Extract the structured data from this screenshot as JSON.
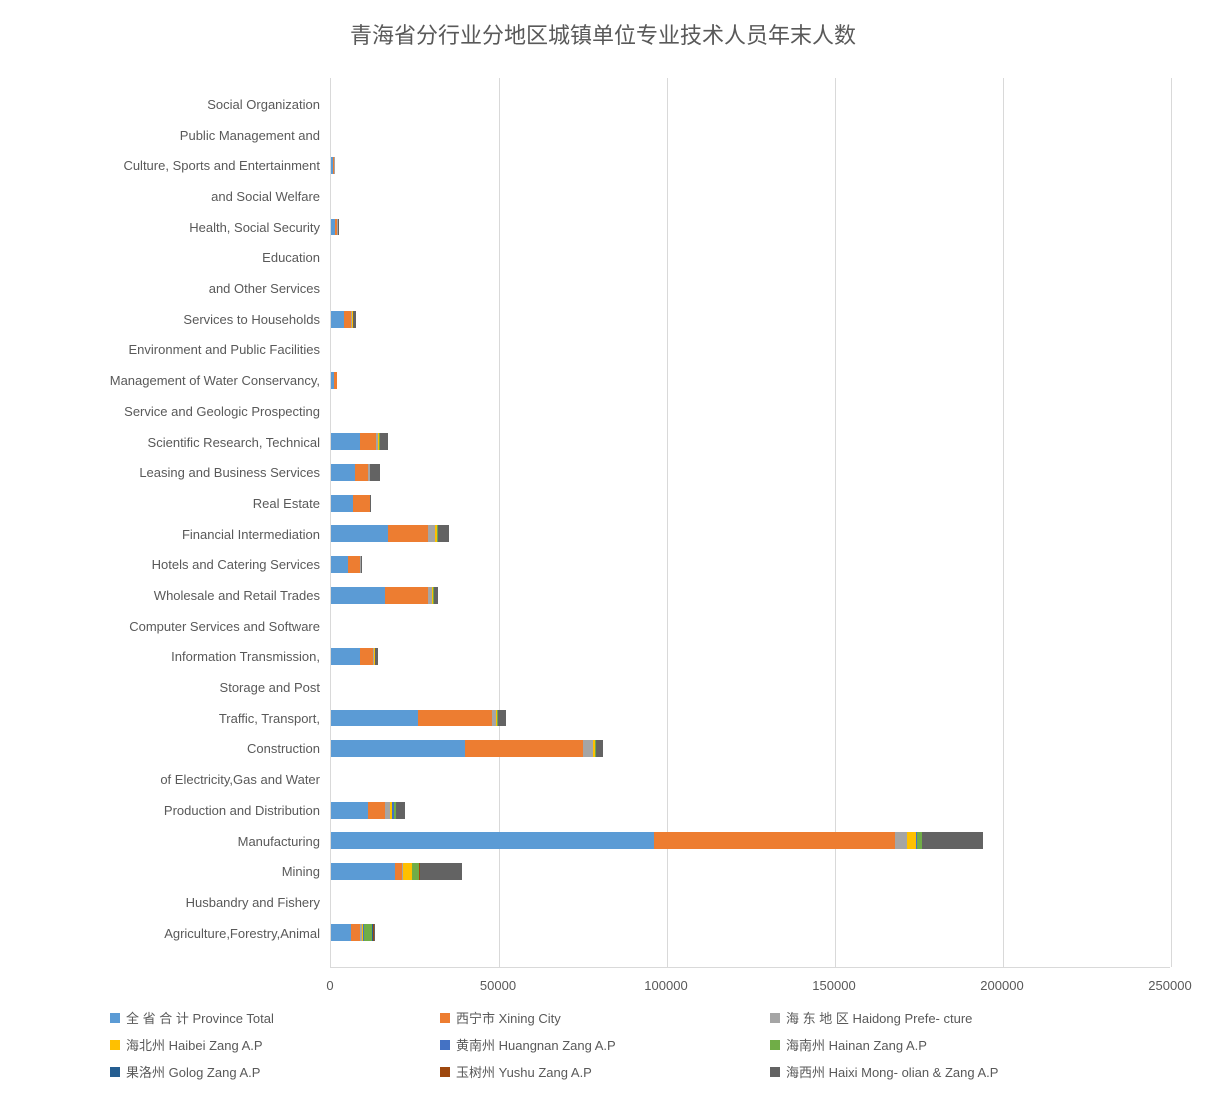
{
  "chart": {
    "type": "stacked-horizontal-bar",
    "title": "青海省分行业分地区城镇单位专业技术人员年末人数",
    "title_fontsize": 22,
    "title_color": "#595959",
    "background_color": "#ffffff",
    "grid_color": "#d9d9d9",
    "axis_label_color": "#595959",
    "axis_label_fontsize": 13,
    "category_label_fontsize": 13,
    "legend_fontsize": 13,
    "xlim": [
      0,
      250000
    ],
    "xtick_step": 50000,
    "xticks": [
      "0",
      "50000",
      "100000",
      "150000",
      "200000",
      "250000"
    ],
    "categories": [
      "Social Organization",
      "Public Management and",
      "Culture, Sports and Entertainment",
      "and Social Welfare",
      "Health, Social Security",
      "Education",
      "and Other Services",
      "Services to Households",
      "Environment and Public Facilities",
      "Management of Water Conservancy,",
      "Service and Geologic Prospecting",
      "Scientific Research, Technical",
      "Leasing and Business Services",
      "Real Estate",
      "Financial Intermediation",
      "Hotels and Catering Services",
      "Wholesale and Retail Trades",
      "Computer Services and Software",
      "Information Transmission,",
      "Storage and Post",
      "Traffic, Transport,",
      "Construction",
      "of Electricity,Gas and Water",
      "Production and Distribution",
      "Manufacturing",
      "Mining",
      "Husbandry and Fishery",
      "Agriculture,Forestry,Animal"
    ],
    "series": [
      {
        "name": "全 省 合 计 Province Total",
        "color": "#5b9bd5"
      },
      {
        "name": "西宁市 Xining City",
        "color": "#ed7d31"
      },
      {
        "name": "海 东 地 区 Haidong Prefe- cture",
        "color": "#a5a5a5"
      },
      {
        "name": "海北州 Haibei Zang A.P",
        "color": "#ffc000"
      },
      {
        "name": "黄南州 Huangnan Zang A.P",
        "color": "#4472c4"
      },
      {
        "name": "海南州 Hainan Zang A.P",
        "color": "#70ad47"
      },
      {
        "name": "果洛州 Golog Zang A.P",
        "color": "#255e91"
      },
      {
        "name": "玉树州 Yushu Zang A.P",
        "color": "#9e480e"
      },
      {
        "name": "海西州 Haixi Mong- olian & Zang A.P",
        "color": "#636363"
      }
    ],
    "values": [
      [
        0,
        0,
        0,
        0,
        0,
        0,
        0,
        0,
        0
      ],
      [
        0,
        0,
        0,
        0,
        0,
        0,
        0,
        0,
        0
      ],
      [
        600,
        300,
        200,
        0,
        0,
        0,
        0,
        0,
        0
      ],
      [
        0,
        0,
        0,
        0,
        0,
        0,
        0,
        0,
        0
      ],
      [
        1200,
        600,
        200,
        100,
        0,
        0,
        0,
        0,
        200
      ],
      [
        0,
        0,
        0,
        0,
        0,
        0,
        0,
        0,
        0
      ],
      [
        0,
        0,
        0,
        0,
        0,
        0,
        0,
        0,
        0
      ],
      [
        4000,
        2000,
        300,
        200,
        0,
        0,
        0,
        0,
        1000
      ],
      [
        0,
        0,
        0,
        0,
        0,
        0,
        0,
        0,
        0
      ],
      [
        1000,
        800,
        0,
        0,
        0,
        0,
        0,
        0,
        0
      ],
      [
        0,
        0,
        0,
        0,
        0,
        0,
        0,
        0,
        0
      ],
      [
        8500,
        5000,
        500,
        300,
        0,
        200,
        0,
        0,
        2500
      ],
      [
        7000,
        4000,
        500,
        200,
        0,
        0,
        0,
        0,
        2800
      ],
      [
        6500,
        5000,
        0,
        0,
        0,
        0,
        0,
        0,
        300
      ],
      [
        17000,
        12000,
        2000,
        500,
        0,
        400,
        0,
        0,
        3100
      ],
      [
        5000,
        3500,
        300,
        0,
        0,
        0,
        0,
        0,
        200
      ],
      [
        16000,
        13000,
        1200,
        300,
        0,
        200,
        0,
        0,
        1300
      ],
      [
        0,
        0,
        0,
        0,
        0,
        0,
        0,
        0,
        0
      ],
      [
        8500,
        4000,
        400,
        200,
        0,
        0,
        0,
        0,
        900
      ],
      [
        0,
        0,
        0,
        0,
        0,
        0,
        0,
        0,
        0
      ],
      [
        26000,
        22000,
        1000,
        500,
        0,
        300,
        0,
        0,
        2200
      ],
      [
        40000,
        35000,
        3000,
        500,
        0,
        300,
        0,
        0,
        2200
      ],
      [
        0,
        0,
        0,
        0,
        0,
        0,
        0,
        0,
        0
      ],
      [
        11000,
        5000,
        1500,
        800,
        400,
        600,
        0,
        0,
        2700
      ],
      [
        96000,
        72000,
        3500,
        2500,
        500,
        1500,
        0,
        0,
        18000
      ],
      [
        19000,
        2000,
        500,
        2500,
        200,
        2000,
        0,
        200,
        12600
      ],
      [
        0,
        0,
        0,
        0,
        0,
        0,
        0,
        0,
        0
      ],
      [
        6000,
        2500,
        800,
        200,
        300,
        2500,
        200,
        200,
        300
      ]
    ]
  }
}
